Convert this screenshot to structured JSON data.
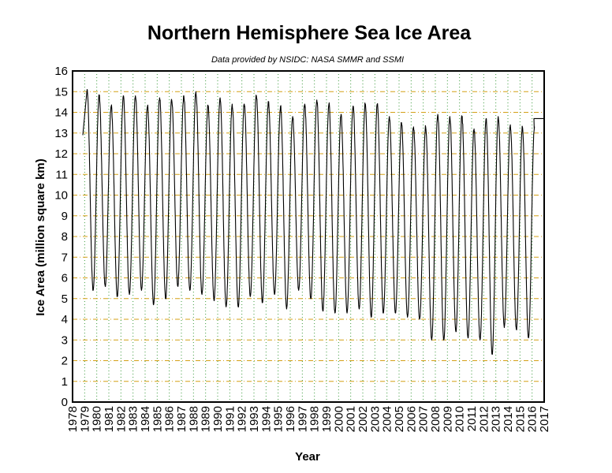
{
  "chart_data": {
    "type": "line",
    "title": "Northern Hemisphere Sea Ice Area",
    "subtitle": "Data provided by NSIDC: NASA SMMR and SSMI",
    "xlabel": "Year",
    "ylabel": "Ice Area (million square km)",
    "xlim": [
      1978,
      2017
    ],
    "ylim": [
      0,
      16
    ],
    "x_ticks": [
      "1978",
      "1979",
      "1980",
      "1981",
      "1982",
      "1983",
      "1984",
      "1985",
      "1986",
      "1987",
      "1988",
      "1989",
      "1990",
      "1991",
      "1992",
      "1993",
      "1994",
      "1995",
      "1996",
      "1997",
      "1998",
      "1999",
      "2000",
      "2001",
      "2002",
      "2003",
      "2004",
      "2005",
      "2006",
      "2007",
      "2008",
      "2009",
      "2010",
      "2011",
      "2012",
      "2013",
      "2014",
      "2015",
      "2016",
      "2017"
    ],
    "y_ticks": [
      "0",
      "1",
      "2",
      "3",
      "4",
      "5",
      "6",
      "7",
      "8",
      "9",
      "10",
      "11",
      "12",
      "13",
      "14",
      "15",
      "16"
    ],
    "grid": true,
    "series": [
      {
        "annual_max": [
          {
            "x": 1979.2,
            "y": 15.1
          },
          {
            "x": 1980.2,
            "y": 14.8
          },
          {
            "x": 1981.2,
            "y": 14.3
          },
          {
            "x": 1982.2,
            "y": 14.8
          },
          {
            "x": 1983.2,
            "y": 14.8
          },
          {
            "x": 1984.2,
            "y": 14.3
          },
          {
            "x": 1985.2,
            "y": 14.7
          },
          {
            "x": 1986.2,
            "y": 14.6
          },
          {
            "x": 1987.2,
            "y": 14.8
          },
          {
            "x": 1988.2,
            "y": 15.0
          },
          {
            "x": 1989.2,
            "y": 14.3
          },
          {
            "x": 1990.2,
            "y": 14.7
          },
          {
            "x": 1991.2,
            "y": 14.4
          },
          {
            "x": 1992.2,
            "y": 14.4
          },
          {
            "x": 1993.2,
            "y": 14.8
          },
          {
            "x": 1994.2,
            "y": 14.5
          },
          {
            "x": 1995.2,
            "y": 14.3
          },
          {
            "x": 1996.2,
            "y": 13.8
          },
          {
            "x": 1997.2,
            "y": 14.4
          },
          {
            "x": 1998.2,
            "y": 14.6
          },
          {
            "x": 1999.2,
            "y": 14.4
          },
          {
            "x": 2000.2,
            "y": 13.9
          },
          {
            "x": 2001.2,
            "y": 14.3
          },
          {
            "x": 2002.2,
            "y": 14.4
          },
          {
            "x": 2003.2,
            "y": 14.4
          },
          {
            "x": 2004.2,
            "y": 13.8
          },
          {
            "x": 2005.2,
            "y": 13.5
          },
          {
            "x": 2006.2,
            "y": 13.3
          },
          {
            "x": 2007.2,
            "y": 13.3
          },
          {
            "x": 2008.2,
            "y": 13.9
          },
          {
            "x": 2009.2,
            "y": 13.8
          },
          {
            "x": 2010.2,
            "y": 13.8
          },
          {
            "x": 2011.2,
            "y": 13.2
          },
          {
            "x": 2012.2,
            "y": 13.7
          },
          {
            "x": 2013.2,
            "y": 13.8
          },
          {
            "x": 2014.2,
            "y": 13.4
          },
          {
            "x": 2015.2,
            "y": 13.3
          },
          {
            "x": 2016.2,
            "y": 13.3
          }
        ],
        "annual_min": [
          {
            "x": 1979.7,
            "y": 5.4
          },
          {
            "x": 1980.7,
            "y": 5.6
          },
          {
            "x": 1981.7,
            "y": 5.1
          },
          {
            "x": 1982.7,
            "y": 5.2
          },
          {
            "x": 1983.7,
            "y": 5.4
          },
          {
            "x": 1984.7,
            "y": 4.7
          },
          {
            "x": 1985.7,
            "y": 5.0
          },
          {
            "x": 1986.7,
            "y": 5.6
          },
          {
            "x": 1987.7,
            "y": 5.4
          },
          {
            "x": 1988.7,
            "y": 5.2
          },
          {
            "x": 1989.7,
            "y": 4.9
          },
          {
            "x": 1990.7,
            "y": 4.6
          },
          {
            "x": 1991.7,
            "y": 4.6
          },
          {
            "x": 1992.7,
            "y": 5.1
          },
          {
            "x": 1993.7,
            "y": 4.8
          },
          {
            "x": 1994.7,
            "y": 5.2
          },
          {
            "x": 1995.7,
            "y": 4.5
          },
          {
            "x": 1996.7,
            "y": 5.4
          },
          {
            "x": 1997.7,
            "y": 5.0
          },
          {
            "x": 1998.7,
            "y": 4.4
          },
          {
            "x": 1999.7,
            "y": 4.3
          },
          {
            "x": 2000.7,
            "y": 4.3
          },
          {
            "x": 2001.7,
            "y": 4.5
          },
          {
            "x": 2002.7,
            "y": 4.1
          },
          {
            "x": 2003.7,
            "y": 4.3
          },
          {
            "x": 2004.7,
            "y": 4.3
          },
          {
            "x": 2005.7,
            "y": 4.1
          },
          {
            "x": 2006.7,
            "y": 4.0
          },
          {
            "x": 2007.7,
            "y": 3.0
          },
          {
            "x": 2008.7,
            "y": 3.0
          },
          {
            "x": 2009.7,
            "y": 3.4
          },
          {
            "x": 2010.7,
            "y": 3.1
          },
          {
            "x": 2011.7,
            "y": 3.0
          },
          {
            "x": 2012.7,
            "y": 2.3
          },
          {
            "x": 2013.7,
            "y": 3.6
          },
          {
            "x": 2014.7,
            "y": 3.5
          },
          {
            "x": 2015.7,
            "y": 3.1
          }
        ],
        "end_point": {
          "x": 2016.15,
          "y": 13.7
        }
      }
    ]
  }
}
